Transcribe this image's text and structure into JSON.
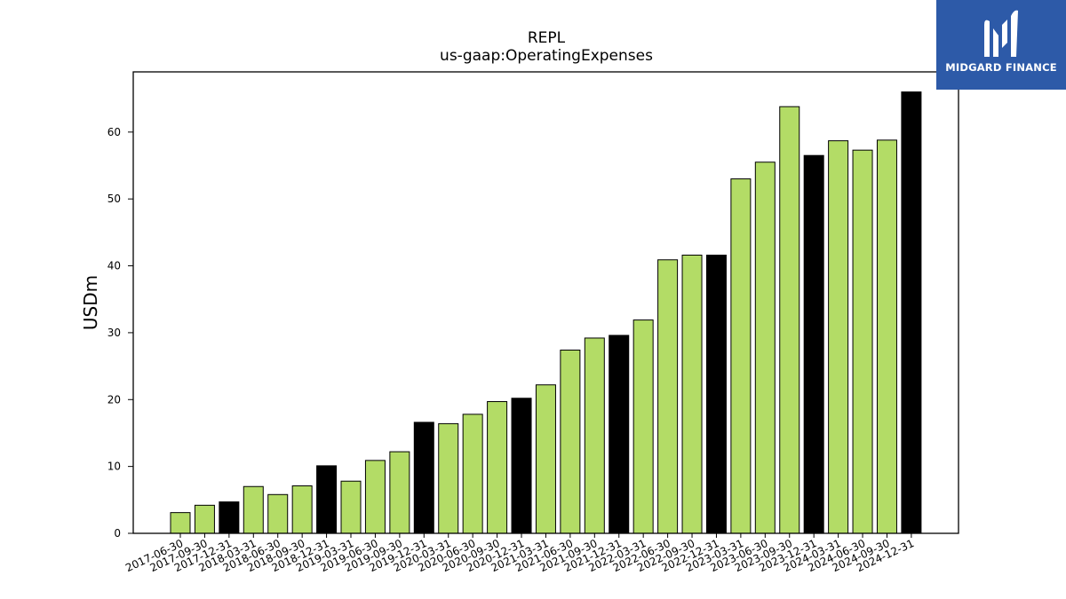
{
  "chart_data": {
    "type": "bar",
    "title": "REPL",
    "subtitle": "us-gaap:OperatingExpenses",
    "ylabel": "USDm",
    "xlabel": "",
    "ylim": [
      0,
      69
    ],
    "yticks": [
      0,
      10,
      20,
      30,
      40,
      50,
      60
    ],
    "grid": false,
    "categories": [
      "2017-06-30",
      "2017-09-30",
      "2017-12-31",
      "2018-03-31",
      "2018-06-30",
      "2018-09-30",
      "2018-12-31",
      "2019-03-31",
      "2019-06-30",
      "2019-09-30",
      "2019-12-31",
      "2020-03-31",
      "2020-06-30",
      "2020-09-30",
      "2020-12-31",
      "2021-03-31",
      "2021-06-30",
      "2021-09-30",
      "2021-12-31",
      "2022-03-31",
      "2022-06-30",
      "2022-09-30",
      "2022-12-31",
      "2023-03-31",
      "2023-06-30",
      "2023-09-30",
      "2023-12-31",
      "2024-03-31",
      "2024-06-30",
      "2024-09-30",
      "2024-12-31"
    ],
    "values": [
      3.1,
      4.2,
      4.7,
      7.0,
      5.8,
      7.1,
      10.1,
      7.8,
      10.9,
      12.2,
      16.6,
      16.4,
      17.8,
      19.7,
      20.2,
      22.2,
      27.4,
      29.2,
      29.6,
      31.9,
      40.9,
      41.6,
      41.6,
      53.0,
      55.5,
      63.8,
      56.5,
      58.7,
      57.3,
      58.8,
      66.0
    ],
    "highlight": [
      false,
      false,
      true,
      false,
      false,
      false,
      true,
      false,
      false,
      false,
      true,
      false,
      false,
      false,
      true,
      false,
      false,
      false,
      true,
      false,
      false,
      false,
      true,
      false,
      false,
      false,
      true,
      false,
      false,
      false,
      true
    ],
    "colors": {
      "normal": "#b3dc66",
      "highlight": "#000000",
      "edge": "#000000"
    }
  },
  "logo": {
    "text": "MIDGARD FINANCE",
    "background": "#2d5aa8"
  }
}
